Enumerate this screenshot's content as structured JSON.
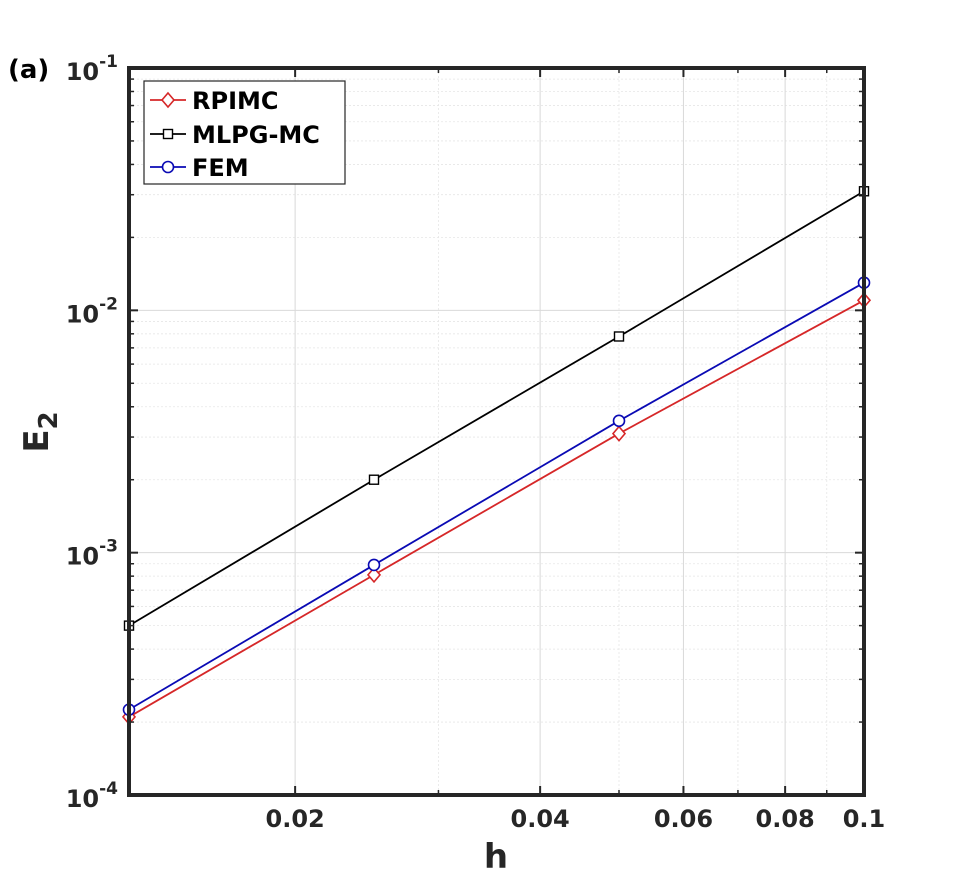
{
  "chart_data": {
    "type": "line",
    "panel_label": "(a)",
    "xlabel": "h",
    "ylabel": "E",
    "ylabel_subscript": "2",
    "xscale": "log",
    "yscale": "log",
    "xlim": [
      0.0125,
      0.1
    ],
    "ylim": [
      0.0001,
      0.1
    ],
    "grid": true,
    "legend_position": "top-left",
    "x_ticks": [
      {
        "value": 0.02,
        "label": "0.02"
      },
      {
        "value": 0.04,
        "label": "0.04"
      },
      {
        "value": 0.06,
        "label": "0.06"
      },
      {
        "value": 0.08,
        "label": "0.08"
      },
      {
        "value": 0.1,
        "label": "0.1"
      }
    ],
    "y_ticks": [
      {
        "value": 0.0001,
        "base": "10",
        "exp": "-4"
      },
      {
        "value": 0.001,
        "base": "10",
        "exp": "-3"
      },
      {
        "value": 0.01,
        "base": "10",
        "exp": "-2"
      },
      {
        "value": 0.1,
        "base": "10",
        "exp": "-1"
      }
    ],
    "x": [
      0.0125,
      0.025,
      0.05,
      0.1
    ],
    "series": [
      {
        "name": "RPIMC",
        "color": "#d62728",
        "marker": "diamond",
        "values": [
          0.00021,
          0.00081,
          0.0031,
          0.011
        ]
      },
      {
        "name": "MLPG-MC",
        "color": "#000000",
        "marker": "square",
        "values": [
          0.0005,
          0.002,
          0.0078,
          0.031
        ]
      },
      {
        "name": "FEM",
        "color": "#0a0ab4",
        "marker": "circle",
        "values": [
          0.000225,
          0.00089,
          0.0035,
          0.013
        ]
      }
    ]
  }
}
